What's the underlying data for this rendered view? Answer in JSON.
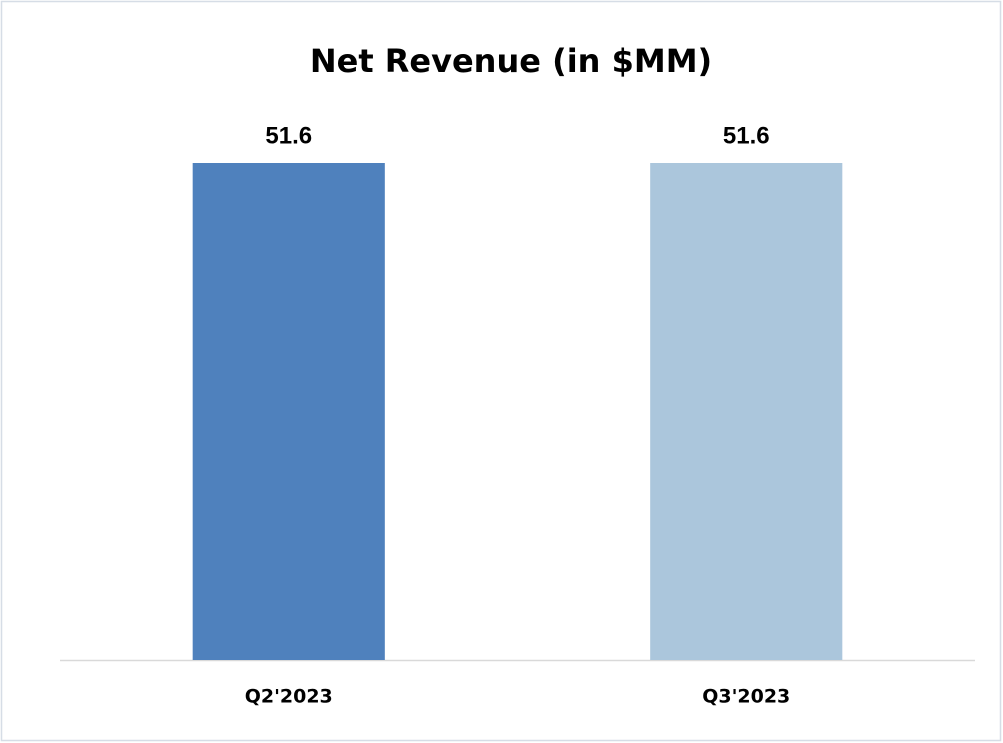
{
  "chart_data": {
    "type": "bar",
    "title": "Net Revenue (in $MM)",
    "categories": [
      "Q2'2023",
      "Q3'2023"
    ],
    "values": [
      51.6,
      51.6
    ],
    "colors": [
      "#4f81bd",
      "#abc6dc"
    ]
  }
}
